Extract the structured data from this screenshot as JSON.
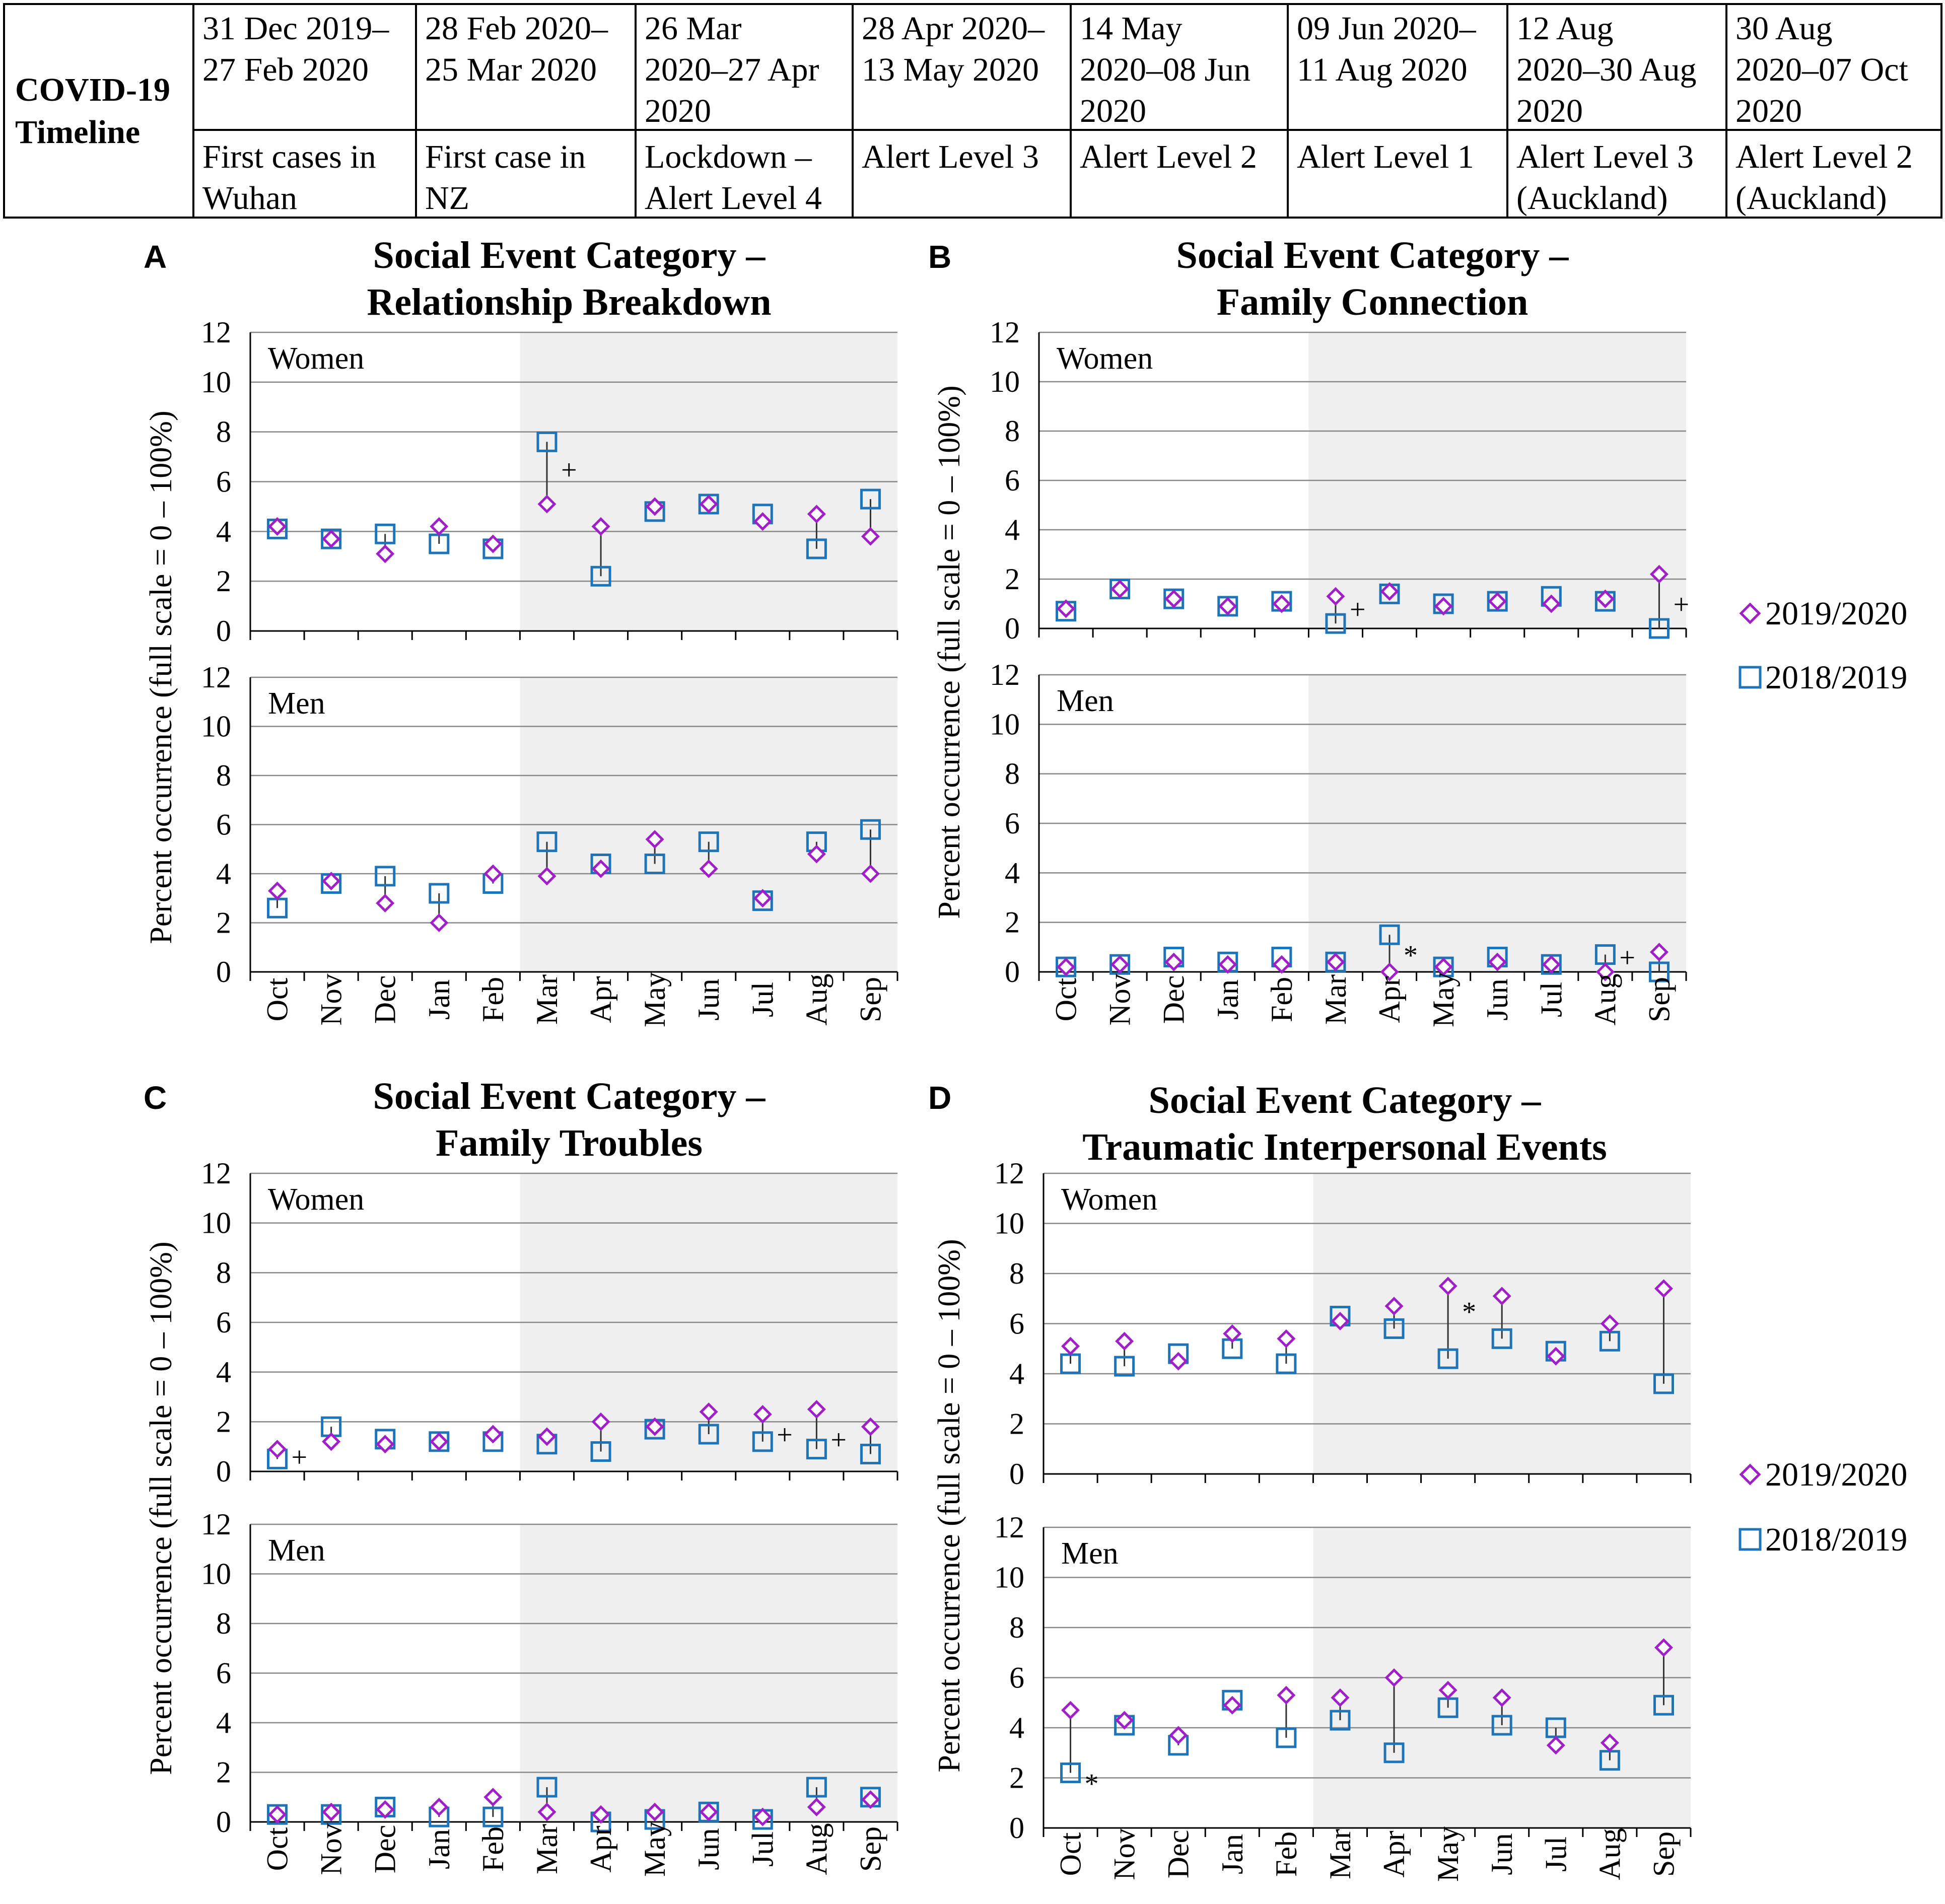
{
  "timeline": {
    "title_line1": "COVID-19",
    "title_line2": "Timeline",
    "columns": [
      {
        "date": [
          "31 Dec 2019–",
          "27 Feb 2020"
        ],
        "event": [
          "First cases in",
          "Wuhan"
        ]
      },
      {
        "date": [
          "28 Feb 2020–",
          "25 Mar 2020"
        ],
        "event": [
          "First case in",
          "NZ"
        ]
      },
      {
        "date": [
          "26 Mar",
          "2020–27 Apr",
          "2020"
        ],
        "event": [
          "Lockdown –",
          "Alert Level 4"
        ]
      },
      {
        "date": [
          "28 Apr 2020–",
          "13 May 2020"
        ],
        "event": [
          "Alert Level 3"
        ]
      },
      {
        "date": [
          "14 May",
          "2020–08 Jun",
          "2020"
        ],
        "event": [
          "Alert Level 2"
        ]
      },
      {
        "date": [
          "09 Jun 2020–",
          "11 Aug 2020"
        ],
        "event": [
          "Alert Level 1"
        ]
      },
      {
        "date": [
          "12 Aug",
          "2020–30 Aug",
          "2020"
        ],
        "event": [
          "Alert Level 3",
          "(Auckland)"
        ]
      },
      {
        "date": [
          "30 Aug",
          "2020–07 Oct",
          "2020"
        ],
        "event": [
          "Alert Level 2",
          "(Auckland)"
        ]
      }
    ]
  },
  "legend": {
    "series_2020": "2019/2020",
    "series_2019": "2018/2019"
  },
  "colors": {
    "series_2020": "#a020c8",
    "series_2019": "#1f73b7",
    "shade": "#efefef",
    "grid": "#888888"
  },
  "chart_data": [
    {
      "type": "scatter",
      "panel": "A",
      "title": [
        "Social Event Category –",
        "Relationship Breakdown"
      ],
      "ylabel": "Percent occurrence (full scale = 0 – 100%)",
      "categories": [
        "Oct",
        "Nov",
        "Dec",
        "Jan",
        "Feb",
        "Mar",
        "Apr",
        "May",
        "Jun",
        "Jul",
        "Aug",
        "Sep"
      ],
      "yticks": [
        "0",
        "2",
        "4",
        "6",
        "8",
        "10",
        "12"
      ],
      "ylim": [
        0,
        12
      ],
      "shaded_from": "Mar",
      "subplots": [
        {
          "label": "Women",
          "series": [
            {
              "name": "2019/2020",
              "values": [
                4.2,
                3.7,
                3.1,
                4.2,
                3.5,
                5.1,
                4.2,
                5.0,
                5.1,
                4.4,
                4.7,
                3.8
              ]
            },
            {
              "name": "2018/2019",
              "values": [
                4.1,
                3.7,
                3.9,
                3.5,
                3.3,
                7.6,
                2.2,
                4.8,
                5.1,
                4.7,
                3.3,
                5.3
              ]
            }
          ],
          "annotations": [
            {
              "category": "Mar",
              "value": 6.5,
              "text": "+"
            }
          ]
        },
        {
          "label": "Men",
          "series": [
            {
              "name": "2019/2020",
              "values": [
                3.3,
                3.7,
                2.8,
                2.0,
                4.0,
                3.9,
                4.2,
                5.4,
                4.2,
                3.0,
                4.8,
                4.0
              ]
            },
            {
              "name": "2018/2019",
              "values": [
                2.6,
                3.6,
                3.9,
                3.2,
                3.6,
                5.3,
                4.4,
                4.4,
                5.3,
                2.9,
                5.3,
                5.8
              ]
            }
          ],
          "annotations": []
        }
      ]
    },
    {
      "type": "scatter",
      "panel": "B",
      "title": [
        "Social Event Category –",
        "Family Connection"
      ],
      "ylabel": "Percent occurrence (full scale = 0 – 100%)",
      "categories": [
        "Oct",
        "Nov",
        "Dec",
        "Jan",
        "Feb",
        "Mar",
        "Apr",
        "May",
        "Jun",
        "Jul",
        "Aug",
        "Sep"
      ],
      "yticks": [
        "0",
        "2",
        "4",
        "6",
        "8",
        "10",
        "12"
      ],
      "ylim": [
        0,
        12
      ],
      "shaded_from": "Mar",
      "subplots": [
        {
          "label": "Women",
          "series": [
            {
              "name": "2019/2020",
              "values": [
                0.8,
                1.6,
                1.2,
                0.9,
                1.0,
                1.3,
                1.5,
                0.9,
                1.1,
                1.0,
                1.2,
                2.2
              ]
            },
            {
              "name": "2018/2019",
              "values": [
                0.7,
                1.6,
                1.2,
                0.9,
                1.1,
                0.2,
                1.4,
                1.0,
                1.1,
                1.3,
                1.1,
                0.0
              ]
            }
          ],
          "annotations": [
            {
              "category": "Mar",
              "value": 0.8,
              "text": "+"
            },
            {
              "category": "Sep",
              "value": 1.0,
              "text": "+"
            }
          ]
        },
        {
          "label": "Men",
          "series": [
            {
              "name": "2019/2020",
              "values": [
                0.2,
                0.3,
                0.4,
                0.3,
                0.3,
                0.4,
                0.0,
                0.2,
                0.4,
                0.3,
                0.0,
                0.8
              ]
            },
            {
              "name": "2018/2019",
              "values": [
                0.2,
                0.3,
                0.6,
                0.4,
                0.6,
                0.4,
                1.5,
                0.2,
                0.6,
                0.3,
                0.7,
                0.0
              ]
            }
          ],
          "annotations": [
            {
              "category": "Apr",
              "value": 0.7,
              "text": "*"
            },
            {
              "category": "Aug",
              "value": 0.6,
              "text": "+"
            }
          ]
        }
      ]
    },
    {
      "type": "scatter",
      "panel": "C",
      "title": [
        "Social Event Category –",
        "Family Troubles"
      ],
      "ylabel": "Percent occurrence (full scale = 0 – 100%)",
      "categories": [
        "Oct",
        "Nov",
        "Dec",
        "Jan",
        "Feb",
        "Mar",
        "Apr",
        "May",
        "Jun",
        "Jul",
        "Aug",
        "Sep"
      ],
      "yticks": [
        "0",
        "2",
        "4",
        "6",
        "8",
        "10",
        "12"
      ],
      "ylim": [
        0,
        12
      ],
      "shaded_from": "Mar",
      "subplots": [
        {
          "label": "Women",
          "series": [
            {
              "name": "2019/2020",
              "values": [
                0.9,
                1.2,
                1.1,
                1.2,
                1.5,
                1.4,
                2.0,
                1.8,
                2.4,
                2.3,
                2.5,
                1.8
              ]
            },
            {
              "name": "2018/2019",
              "values": [
                0.5,
                1.8,
                1.3,
                1.2,
                1.2,
                1.1,
                0.8,
                1.7,
                1.5,
                1.2,
                0.9,
                0.7
              ]
            }
          ],
          "annotations": [
            {
              "category": "Oct",
              "value": 0.6,
              "text": "+"
            },
            {
              "category": "Jul",
              "value": 1.5,
              "text": "+"
            },
            {
              "category": "Aug",
              "value": 1.3,
              "text": "+"
            }
          ]
        },
        {
          "label": "Men",
          "series": [
            {
              "name": "2019/2020",
              "values": [
                0.3,
                0.4,
                0.5,
                0.6,
                1.0,
                0.4,
                0.3,
                0.4,
                0.4,
                0.2,
                0.6,
                0.9
              ]
            },
            {
              "name": "2018/2019",
              "values": [
                0.3,
                0.3,
                0.6,
                0.2,
                0.2,
                1.4,
                0.0,
                0.1,
                0.4,
                0.1,
                1.4,
                1.0
              ]
            }
          ],
          "annotations": []
        }
      ]
    },
    {
      "type": "scatter",
      "panel": "D",
      "title": [
        "Social Event Category –",
        "Traumatic Interpersonal Events"
      ],
      "ylabel": "Percent occurrence (full scale = 0 – 100%)",
      "categories": [
        "Oct",
        "Nov",
        "Dec",
        "Jan",
        "Feb",
        "Mar",
        "Apr",
        "May",
        "Jun",
        "Jul",
        "Aug",
        "Sep"
      ],
      "yticks": [
        "0",
        "2",
        "4",
        "6",
        "8",
        "10",
        "12"
      ],
      "ylim": [
        0,
        12
      ],
      "shaded_from": "Mar",
      "subplots": [
        {
          "label": "Women",
          "series": [
            {
              "name": "2019/2020",
              "values": [
                5.1,
                5.3,
                4.5,
                5.6,
                5.4,
                6.1,
                6.7,
                7.5,
                7.1,
                4.7,
                6.0,
                7.4
              ]
            },
            {
              "name": "2018/2019",
              "values": [
                4.4,
                4.3,
                4.8,
                5.0,
                4.4,
                6.3,
                5.8,
                4.6,
                5.4,
                4.9,
                5.3,
                3.6
              ]
            }
          ],
          "annotations": [
            {
              "category": "May",
              "value": 6.5,
              "text": "*"
            }
          ]
        },
        {
          "label": "Men",
          "series": [
            {
              "name": "2019/2020",
              "values": [
                4.7,
                4.3,
                3.7,
                4.9,
                5.3,
                5.2,
                6.0,
                5.5,
                5.2,
                3.3,
                3.4,
                7.2
              ]
            },
            {
              "name": "2018/2019",
              "values": [
                2.2,
                4.1,
                3.3,
                5.1,
                3.6,
                4.3,
                3.0,
                4.8,
                4.1,
                4.0,
                2.7,
                4.9
              ]
            }
          ],
          "annotations": [
            {
              "category": "Oct",
              "value": 1.8,
              "text": "*"
            }
          ]
        }
      ]
    }
  ]
}
